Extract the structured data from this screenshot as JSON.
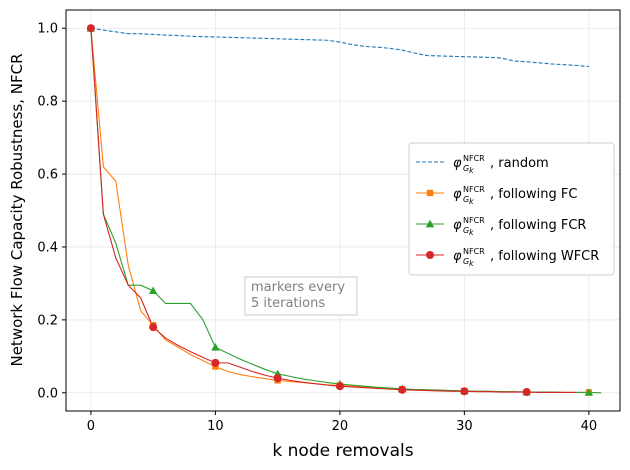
{
  "chart_data": {
    "type": "line",
    "title": "",
    "xlabel": "k node removals",
    "ylabel": "Network Flow Capacity Robustness, NFCR",
    "xlim": [
      -2,
      42.5
    ],
    "ylim": [
      -0.05,
      1.05
    ],
    "xticks": [
      0,
      10,
      20,
      30,
      40
    ],
    "yticks": [
      0.0,
      0.2,
      0.4,
      0.6,
      0.8,
      1.0
    ],
    "grid": true,
    "legend_position": "center-right",
    "legend_symbol": "φ",
    "legend_superscript": "NFCR",
    "legend_subscript": "G",
    "legend_subscript_index": "k",
    "annotation": [
      "markers every",
      "5 iterations"
    ],
    "series": [
      {
        "name": "random",
        "color": "#1f77b4",
        "linestyle": "dashed",
        "marker": "none",
        "x": [
          0,
          1,
          2,
          3,
          4,
          5,
          6,
          7,
          8,
          9,
          10,
          11,
          12,
          13,
          14,
          15,
          16,
          17,
          18,
          19,
          20,
          21,
          22,
          23,
          24,
          25,
          26,
          27,
          28,
          29,
          30,
          31,
          32,
          33,
          34,
          35,
          36,
          37,
          38,
          39,
          40
        ],
        "y": [
          1.0,
          0.995,
          0.99,
          0.985,
          0.985,
          0.983,
          0.981,
          0.98,
          0.978,
          0.977,
          0.976,
          0.975,
          0.974,
          0.973,
          0.972,
          0.971,
          0.97,
          0.969,
          0.968,
          0.967,
          0.962,
          0.955,
          0.95,
          0.948,
          0.945,
          0.94,
          0.932,
          0.925,
          0.924,
          0.923,
          0.922,
          0.921,
          0.92,
          0.918,
          0.91,
          0.908,
          0.905,
          0.902,
          0.9,
          0.898,
          0.895
        ]
      },
      {
        "name": "following FC",
        "color": "#ff7f0e",
        "linestyle": "solid",
        "marker": "square",
        "x": [
          0,
          1,
          2,
          3,
          4,
          5,
          6,
          7,
          8,
          9,
          10,
          11,
          12,
          13,
          14,
          15,
          16,
          17,
          18,
          19,
          20,
          21,
          22,
          23,
          24,
          25,
          26,
          27,
          28,
          29,
          30,
          31,
          32,
          33,
          34,
          35,
          36,
          37,
          38,
          39,
          40
        ],
        "y": [
          1.0,
          0.62,
          0.58,
          0.35,
          0.225,
          0.185,
          0.145,
          0.125,
          0.105,
          0.088,
          0.072,
          0.058,
          0.05,
          0.044,
          0.039,
          0.034,
          0.031,
          0.028,
          0.025,
          0.022,
          0.02,
          0.018,
          0.016,
          0.014,
          0.012,
          0.01,
          0.009,
          0.008,
          0.007,
          0.006,
          0.005,
          0.004,
          0.004,
          0.003,
          0.003,
          0.002,
          0.002,
          0.002,
          0.001,
          0.001,
          0.001
        ]
      },
      {
        "name": "following FCR",
        "color": "#2ca02c",
        "linestyle": "solid",
        "marker": "triangle",
        "x": [
          0,
          1,
          2,
          3,
          4,
          5,
          6,
          7,
          8,
          9,
          10,
          11,
          12,
          13,
          14,
          15,
          16,
          17,
          18,
          19,
          20,
          21,
          22,
          23,
          24,
          25,
          26,
          27,
          28,
          29,
          30,
          31,
          32,
          33,
          34,
          35,
          36,
          37,
          38,
          39,
          40,
          41
        ],
        "y": [
          1.0,
          0.49,
          0.41,
          0.295,
          0.295,
          0.28,
          0.245,
          0.245,
          0.245,
          0.2,
          0.125,
          0.108,
          0.092,
          0.078,
          0.064,
          0.052,
          0.045,
          0.038,
          0.033,
          0.028,
          0.024,
          0.021,
          0.018,
          0.015,
          0.013,
          0.011,
          0.009,
          0.008,
          0.007,
          0.006,
          0.005,
          0.004,
          0.004,
          0.003,
          0.003,
          0.002,
          0.002,
          0.002,
          0.001,
          0.001,
          0.001,
          0.0
        ]
      },
      {
        "name": "following WFCR",
        "color": "#d62728",
        "linestyle": "solid",
        "marker": "circle",
        "x": [
          0,
          1,
          2,
          3,
          4,
          5,
          6,
          7,
          8,
          9,
          10,
          11,
          12,
          13,
          14,
          15,
          16,
          17,
          18,
          19,
          20,
          21,
          22,
          23,
          24,
          25,
          26,
          27,
          28,
          29,
          30,
          31,
          32,
          33,
          34,
          35,
          36,
          37,
          38,
          39
        ],
        "y": [
          1.0,
          0.49,
          0.37,
          0.295,
          0.26,
          0.18,
          0.15,
          0.13,
          0.113,
          0.097,
          0.082,
          0.082,
          0.07,
          0.058,
          0.048,
          0.04,
          0.034,
          0.029,
          0.025,
          0.021,
          0.018,
          0.016,
          0.014,
          0.012,
          0.01,
          0.008,
          0.007,
          0.006,
          0.005,
          0.004,
          0.004,
          0.003,
          0.003,
          0.002,
          0.002,
          0.002,
          0.001,
          0.001,
          0.001,
          0.001
        ]
      }
    ]
  }
}
